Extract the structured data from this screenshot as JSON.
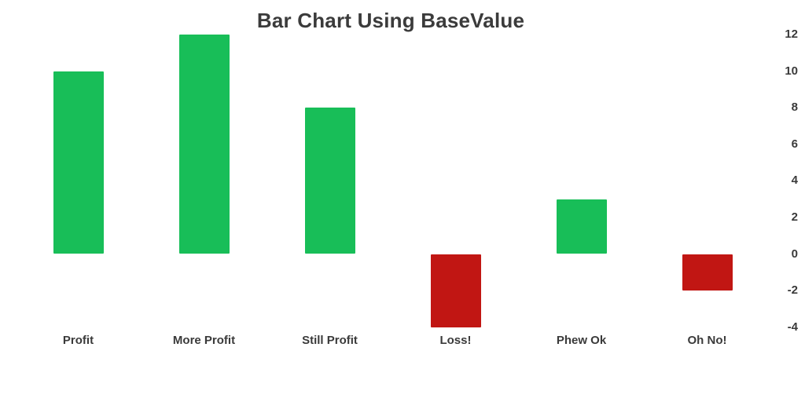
{
  "chart_data": {
    "type": "bar",
    "title": "Bar Chart Using BaseValue",
    "categories": [
      "Profit",
      "More Profit",
      "Still Profit",
      "Loss!",
      "Phew Ok",
      "Oh No!"
    ],
    "values": [
      10,
      12,
      8,
      -4,
      3,
      -2
    ],
    "base_value": 0,
    "positive_color": "#18be58",
    "negative_color": "#c11613",
    "text_color": "#3a3a3a",
    "title_color": "#3b3b3b",
    "background_color": "#ffffff",
    "y_ticks": [
      12,
      10,
      8,
      6,
      4,
      2,
      0,
      -2,
      -4
    ],
    "ylim": [
      -4,
      12
    ],
    "y_axis_position": "right",
    "grid": false,
    "legend": "none",
    "xlabel": "",
    "ylabel": ""
  }
}
